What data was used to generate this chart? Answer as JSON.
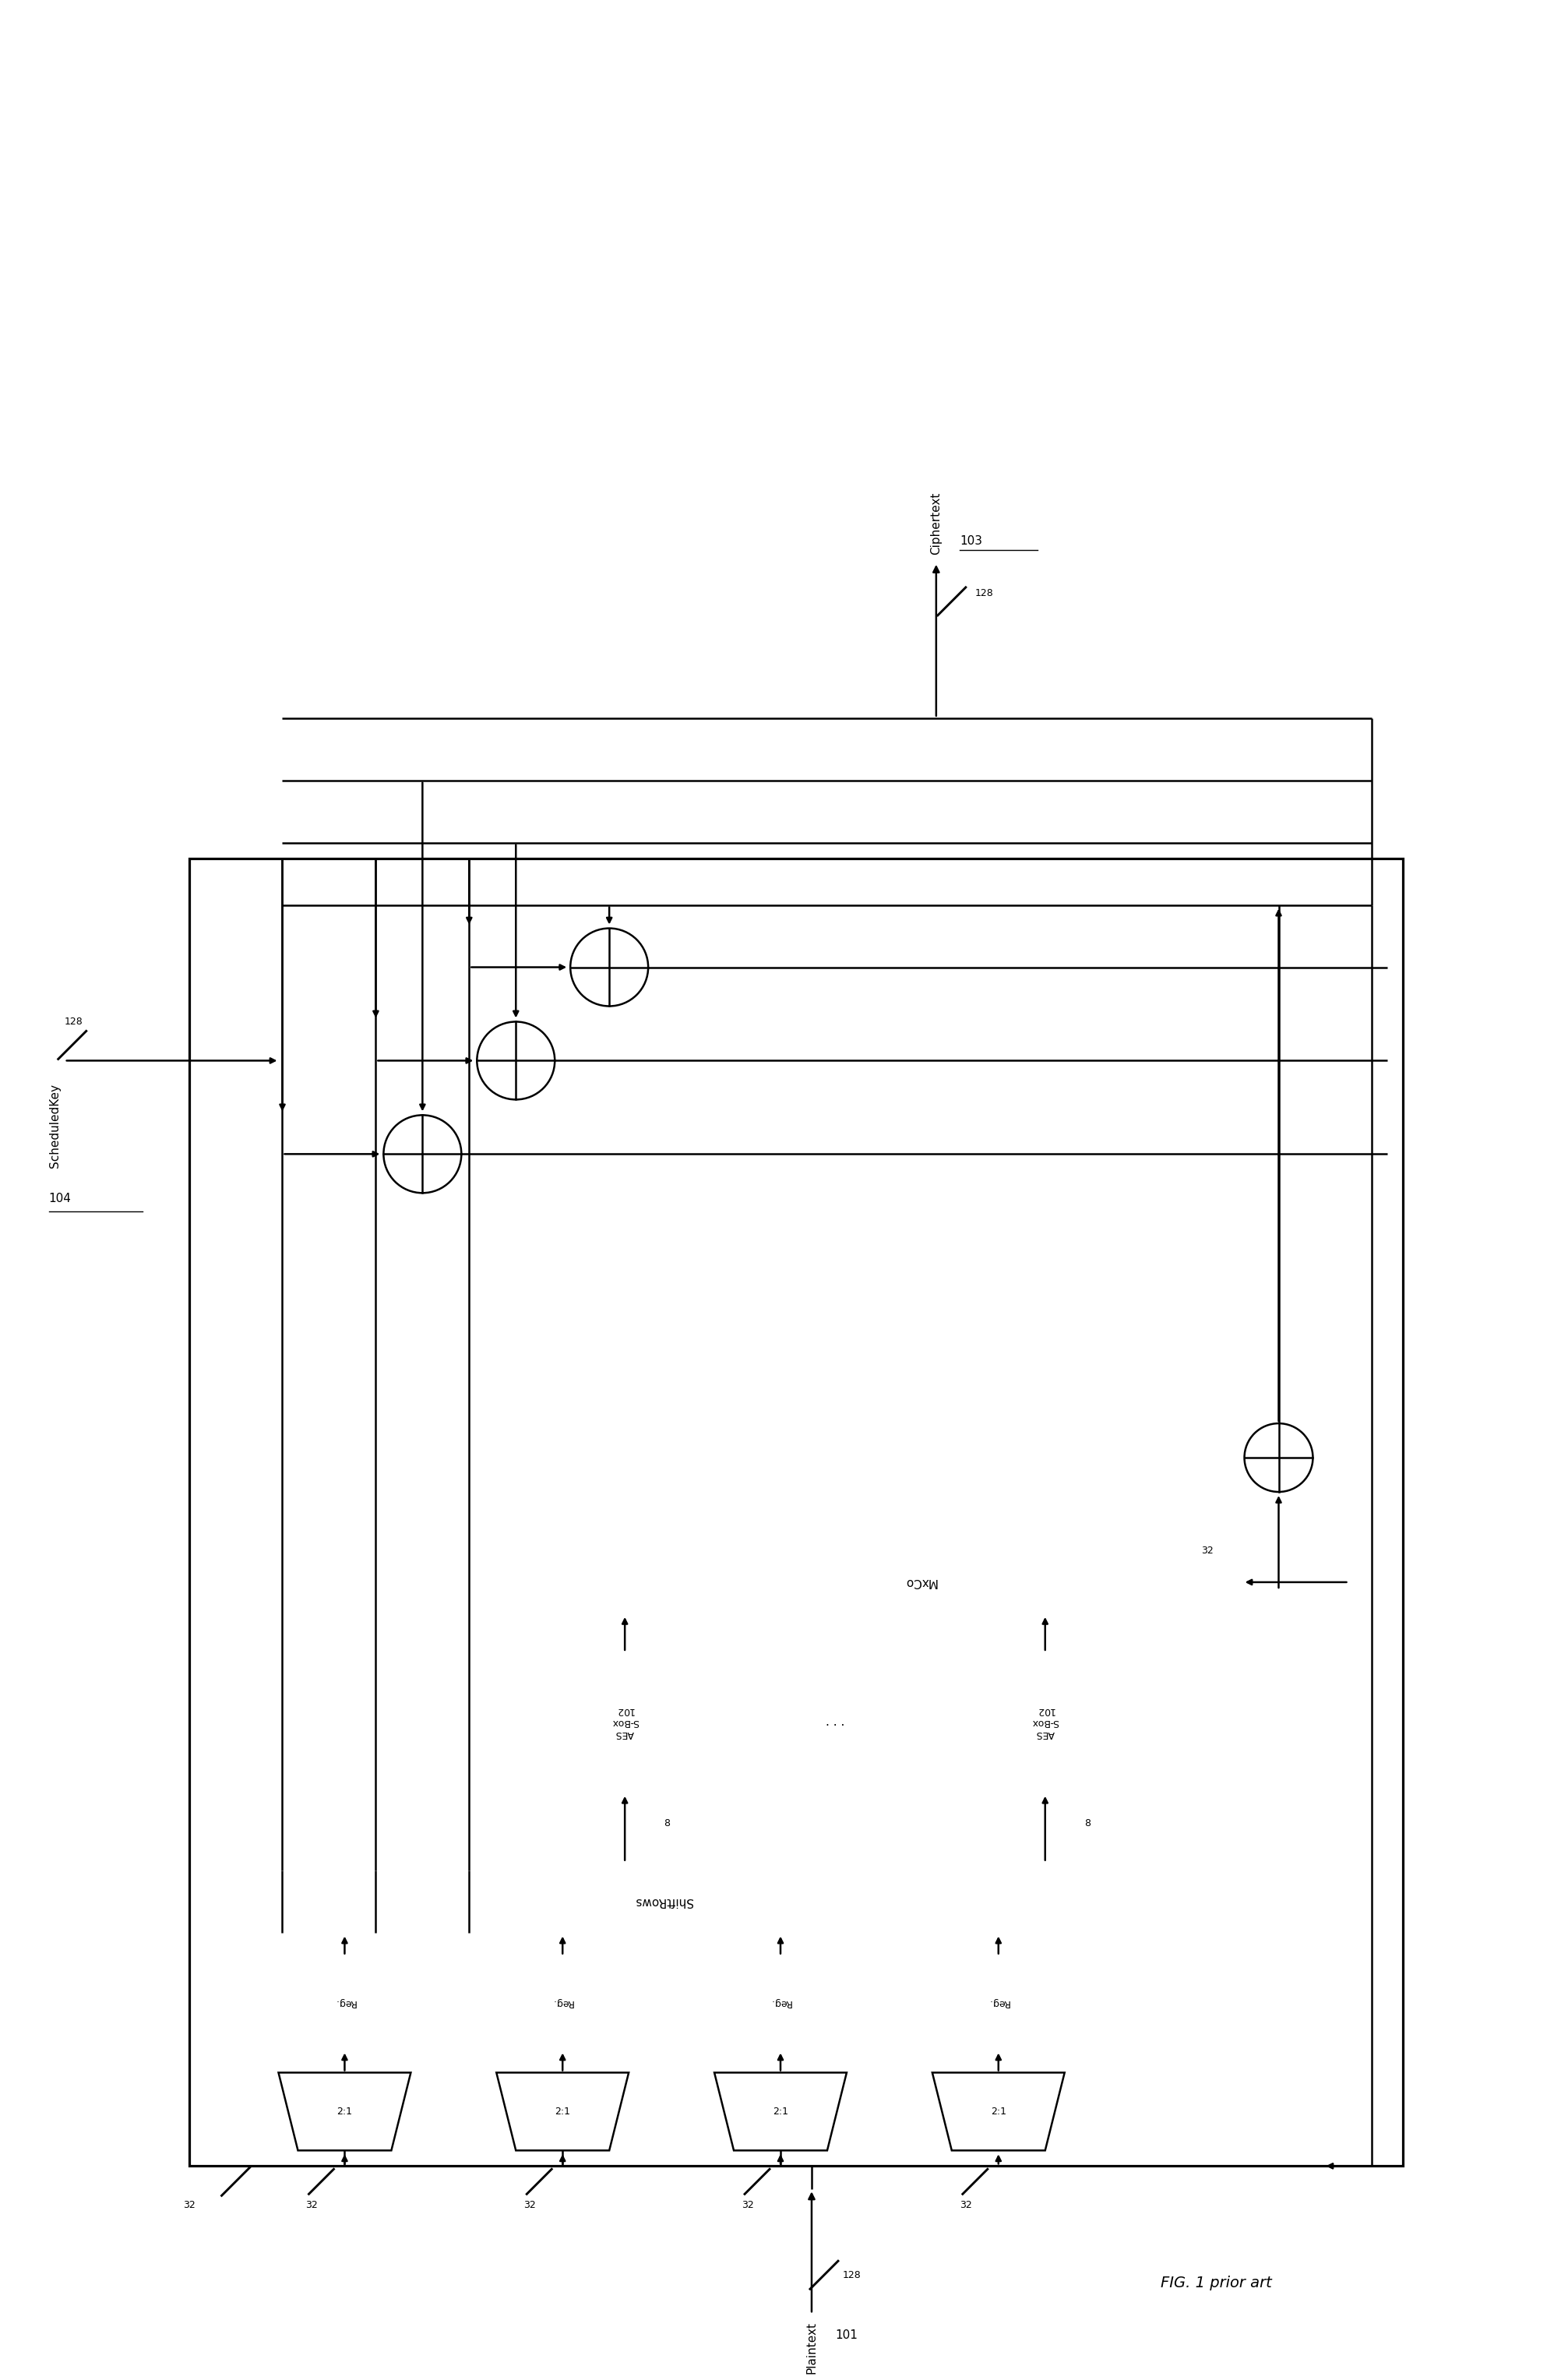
{
  "title": "FIG. 1 prior art",
  "background": "#ffffff",
  "line_color": "#000000",
  "fig_width": 20.04,
  "fig_height": 30.55,
  "labels": {
    "plaintext": "Plaintext",
    "plaintext_num": "101",
    "ciphertext": "Ciphertext",
    "ciphertext_num": "103",
    "scheduled_key": "ScheduledKey",
    "scheduled_key_num": "104",
    "bit128_ct": "128",
    "bit128_key": "128",
    "bit32_mxco": "32",
    "bit8_1": "8",
    "bit8_2": "8",
    "bit32_labels": [
      "32",
      "32",
      "32",
      "32"
    ],
    "bit128_pt": "128",
    "mxco": "MxCo",
    "aes_sbox1": "AES\nS-Box\n102",
    "aes_sbox2": "AES\nS-Box\n102",
    "dots": ". . .",
    "shiftrows": "ShiftRows",
    "reg_labels": [
      "Reg.",
      "Reg.",
      "Reg.",
      "Reg."
    ],
    "mux_labels": [
      "2:1",
      "2:1",
      "2:1",
      "2:1"
    ]
  }
}
